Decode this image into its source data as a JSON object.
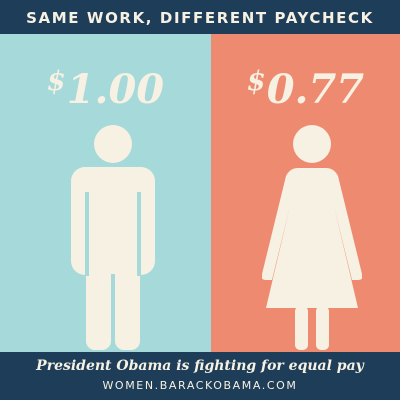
{
  "header": {
    "title": "SAME WORK, DIFFERENT PAYCHECK"
  },
  "left_panel": {
    "currency": "$",
    "amount": "1.00",
    "icon": "man-icon",
    "color": "#a6d9d9"
  },
  "right_panel": {
    "currency": "$",
    "amount": "0.77",
    "icon": "woman-icon",
    "color": "#ee8a6f"
  },
  "footer": {
    "tagline": "President Obama is fighting for equal pay",
    "url": "WOMEN.BARACKOBAMA.COM"
  },
  "colors": {
    "navy": "#1e3d59",
    "cream": "#f6f1e2"
  }
}
